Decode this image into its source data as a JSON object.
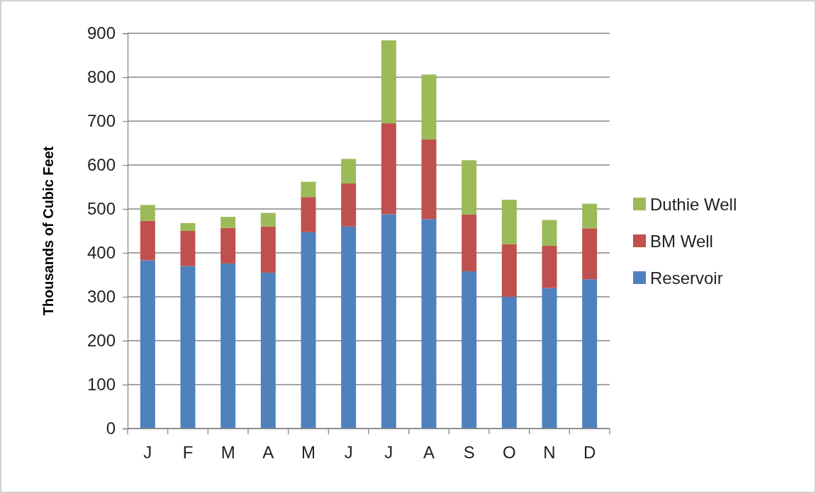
{
  "chart_data": {
    "type": "bar",
    "stacked": true,
    "ylabel": "Thousands of Cubic Feet",
    "categories": [
      "J",
      "F",
      "M",
      "A",
      "M",
      "J",
      "J",
      "A",
      "S",
      "O",
      "N",
      "D"
    ],
    "series": [
      {
        "name": "Reservoir",
        "color": "#4f81bd",
        "values": [
          383,
          370,
          376,
          355,
          447,
          460,
          488,
          477,
          358,
          300,
          320,
          340
        ]
      },
      {
        "name": "BM Well",
        "color": "#c0504d",
        "values": [
          90,
          80,
          81,
          105,
          80,
          98,
          207,
          181,
          129,
          120,
          96,
          116
        ]
      },
      {
        "name": "Duthie Well",
        "color": "#9bbb59",
        "values": [
          36,
          18,
          25,
          31,
          35,
          56,
          189,
          148,
          124,
          101,
          59,
          56
        ]
      }
    ],
    "ylim": [
      0,
      900
    ],
    "yticks": [
      0,
      100,
      200,
      300,
      400,
      500,
      600,
      700,
      800,
      900
    ],
    "grid": "y",
    "legend": "right"
  }
}
